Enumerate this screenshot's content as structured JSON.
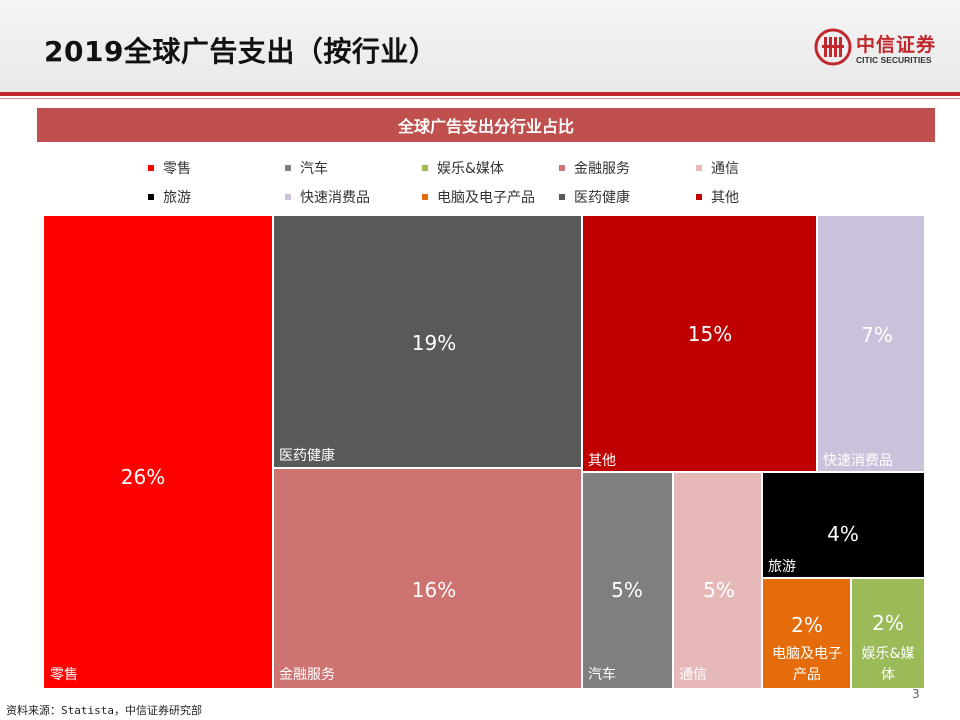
{
  "header": {
    "title": "2019全球广告支出（按行业）"
  },
  "logo": {
    "name_cn": "中信证券",
    "name_en": "CITIC SECURITIES",
    "icon": "citic-logo-icon",
    "brand_color": "#c0282d"
  },
  "footer": {
    "source": "资料来源：Statista，中信证券研究部",
    "page_number": "3"
  },
  "chart_data": {
    "type": "treemap",
    "title": "全球广告支出分行业占比",
    "legend_position": "top",
    "legend": [
      {
        "name": "零售",
        "color": "#ff0000"
      },
      {
        "name": "汽车",
        "color": "#7f7f7f"
      },
      {
        "name": "娱乐&媒体",
        "color": "#9bbb59"
      },
      {
        "name": "金融服务",
        "color": "#cd7371"
      },
      {
        "name": "通信",
        "color": "#e6b9b8"
      },
      {
        "name": "旅游",
        "color": "#000000"
      },
      {
        "name": "快速消费品",
        "color": "#ccc1da"
      },
      {
        "name": "电脑及电子产品",
        "color": "#e46c0a"
      },
      {
        "name": "医药健康",
        "color": "#595959"
      },
      {
        "name": "其他",
        "color": "#c00000"
      }
    ],
    "values": [
      {
        "category": "零售",
        "value": 26,
        "label": "26%"
      },
      {
        "category": "医药健康",
        "value": 19,
        "label": "19%"
      },
      {
        "category": "金融服务",
        "value": 16,
        "label": "16%"
      },
      {
        "category": "其他",
        "value": 15,
        "label": "15%"
      },
      {
        "category": "快速消费品",
        "value": 7,
        "label": "7%"
      },
      {
        "category": "汽车",
        "value": 5,
        "label": "5%"
      },
      {
        "category": "通信",
        "value": 5,
        "label": "5%"
      },
      {
        "category": "旅游",
        "value": 4,
        "label": "4%"
      },
      {
        "category": "电脑及电子产品",
        "value": 2,
        "label": "2%"
      },
      {
        "category": "娱乐&媒体",
        "value": 2,
        "label": "2%"
      }
    ]
  }
}
